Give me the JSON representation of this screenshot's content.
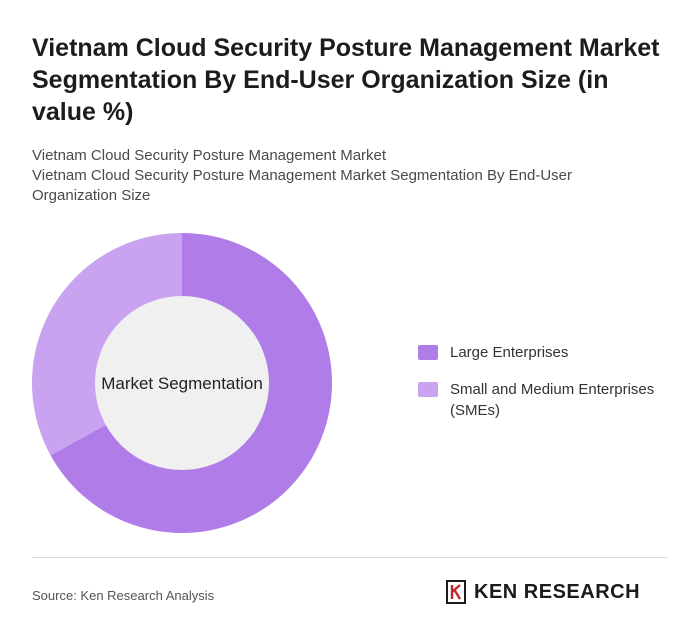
{
  "header": {
    "title": "Vietnam Cloud Security Posture Management Market Segmentation By End-User Organization Size (in value %)",
    "subtitle_line1": "Vietnam Cloud Security Posture Management Market",
    "subtitle_line2": "Vietnam Cloud Security Posture Management Market Segmentation By End-User Organization Size"
  },
  "chart_data": {
    "type": "pie",
    "style": "donut",
    "center_label": "Market Segmentation",
    "categories": [
      "Large Enterprises",
      "Small and Medium Enterprises (SMEs)"
    ],
    "values": [
      67,
      33
    ],
    "colors": [
      "#b07ce8",
      "#c9a3f0"
    ],
    "legend_position": "right"
  },
  "footer": {
    "source": "Source: Ken Research Analysis",
    "logo_text": "KEN RESEARCH",
    "logo_icon": "ken-research-k-logo"
  }
}
